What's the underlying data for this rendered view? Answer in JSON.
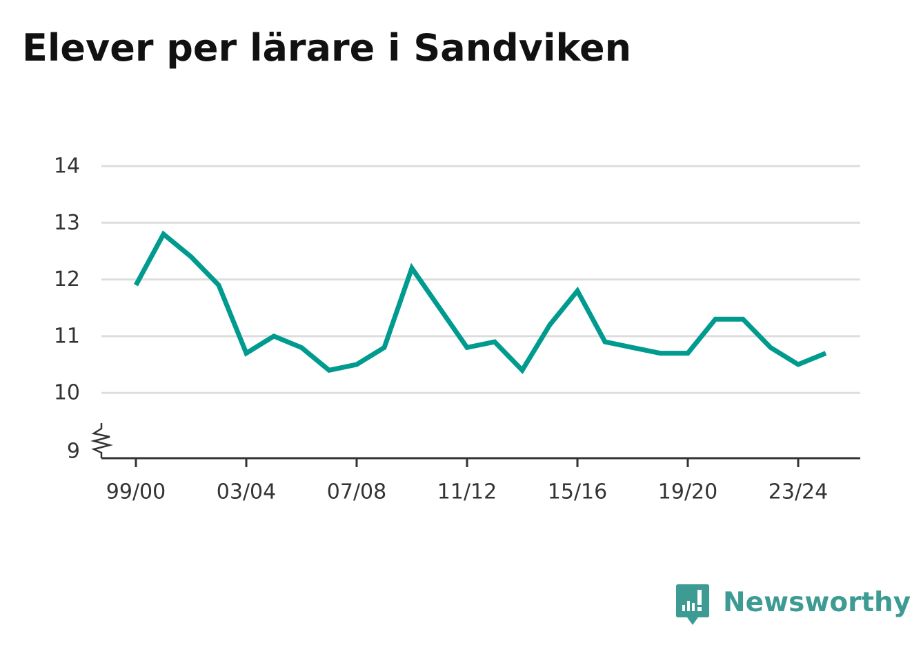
{
  "colors": {
    "line": "#009b8e",
    "grid": "#dddddd",
    "axis": "#333333",
    "brand": "#3d9b94"
  },
  "brand": {
    "name": "Newsworthy",
    "icon": "newsworthy-bar-chart-icon"
  },
  "chart_data": {
    "type": "line",
    "title": "Elever per lärare i Sandviken",
    "xlabel": "",
    "ylabel": "",
    "ylim": [
      9,
      14
    ],
    "y_ticks": [
      9,
      10,
      11,
      12,
      13,
      14
    ],
    "y_axis_break": true,
    "grid": true,
    "x_tick_labels": [
      "99/00",
      "03/04",
      "07/08",
      "11/12",
      "15/16",
      "19/20",
      "23/24"
    ],
    "x": [
      "99/00",
      "00/01",
      "01/02",
      "02/03",
      "03/04",
      "04/05",
      "05/06",
      "06/07",
      "07/08",
      "08/09",
      "09/10",
      "10/11",
      "11/12",
      "12/13",
      "13/14",
      "14/15",
      "15/16",
      "16/17",
      "17/18",
      "18/19",
      "19/20",
      "20/21",
      "21/22",
      "22/23",
      "23/24",
      "24/25"
    ],
    "series": [
      {
        "values": [
          11.9,
          12.8,
          12.4,
          11.9,
          10.7,
          11.0,
          10.8,
          10.4,
          10.5,
          10.8,
          12.2,
          11.5,
          10.8,
          10.9,
          10.4,
          11.2,
          11.8,
          10.9,
          10.8,
          10.7,
          10.7,
          11.3,
          11.3,
          10.8,
          10.5,
          10.7
        ]
      }
    ]
  }
}
